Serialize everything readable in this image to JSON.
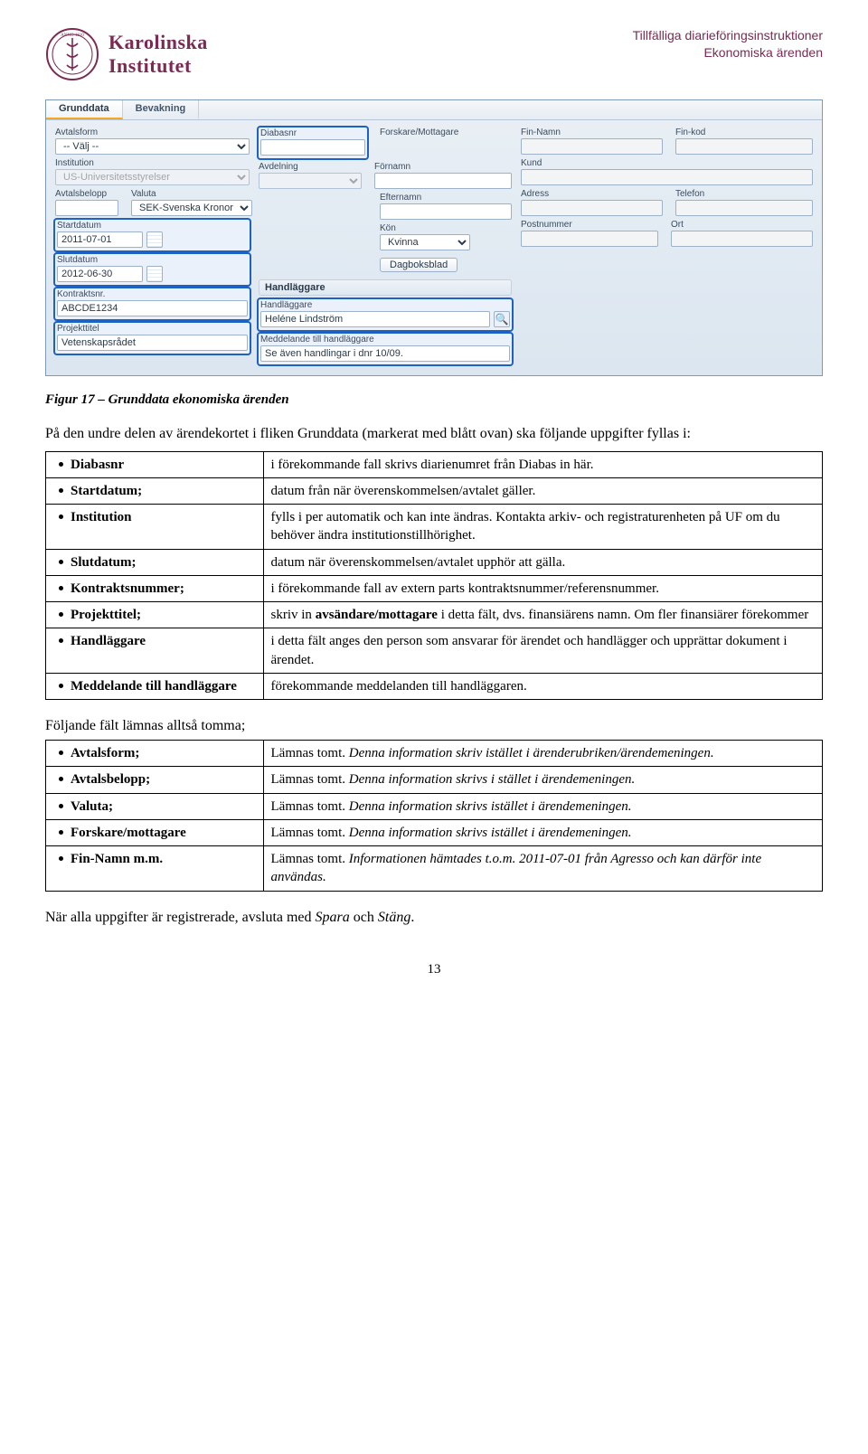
{
  "header": {
    "brand_line1": "Karolinska",
    "brand_line2": "Institutet",
    "right_line1": "Tillfälliga diarieföringsinstruktioner",
    "right_line2": "Ekonomiska ärenden",
    "brand_color": "#7b2a52"
  },
  "shot": {
    "tabs": {
      "grunddata": "Grunddata",
      "bevakning": "Bevakning"
    },
    "labels": {
      "avtalsform": "Avtalsform",
      "valj": "-- Välj --",
      "institution": "Institution",
      "institution_val": "US-Universitetsstyrelser",
      "avtalsbelopp": "Avtalsbelopp",
      "valuta": "Valuta",
      "valuta_val": "SEK-Svenska Kronor",
      "startdatum": "Startdatum",
      "startdatum_val": "2011-07-01",
      "slutdatum": "Slutdatum",
      "slutdatum_val": "2012-06-30",
      "kontraktsnr": "Kontraktsnr.",
      "kontraktsnr_val": "ABCDE1234",
      "projekttitel": "Projekttitel",
      "projekttitel_val": "Vetenskapsrådet",
      "diabasnr": "Diabasnr",
      "avdelning": "Avdelning",
      "forskare": "Forskare/Mottagare",
      "fornamn": "Förnamn",
      "efternamn": "Efternamn",
      "kon": "Kön",
      "kon_val": "Kvinna",
      "dagboksblad": "Dagboksblad",
      "handlaggare_section": "Handläggare",
      "handlaggare": "Handläggare",
      "handlaggare_val": "Heléne Lindström",
      "meddelande": "Meddelande till handläggare",
      "meddelande_val": "Se även handlingar i dnr 10/09.",
      "fin_namn": "Fin-Namn",
      "fin_kod": "Fin-kod",
      "kund": "Kund",
      "adress": "Adress",
      "telefon": "Telefon",
      "postnummer": "Postnummer",
      "ort": "Ort"
    }
  },
  "figure_caption": "Figur 17 – Grunddata ekonomiska ärenden",
  "intro": "På den undre delen av ärendekortet i fliken Grunddata (markerat med blått ovan) ska följande uppgifter fyllas i:",
  "table1": [
    {
      "k": "Diabasnr",
      "v": "i förekommande fall skrivs diarienumret från Diabas in här."
    },
    {
      "k": "Startdatum;",
      "v": "datum från när överenskommelsen/avtalet gäller."
    },
    {
      "k": "Institution",
      "v": "fylls i per automatik och kan inte ändras. Kontakta arkiv- och registraturenheten på UF om du behöver ändra institutionstillhörighet."
    },
    {
      "k": "Slutdatum;",
      "v": "datum när överenskommelsen/avtalet upphör att gälla."
    },
    {
      "k": "Kontraktsnummer;",
      "v": "i förekommande fall av extern parts kontraktsnummer/referensnummer."
    },
    {
      "k": "Projekttitel;",
      "v_pre": "skriv in ",
      "v_bold": "avsändare/mottagare",
      "v_post": " i detta fält, dvs. finansiärens namn. Om fler finansiärer förekommer"
    },
    {
      "k": "Handläggare",
      "v": "i detta fält anges den person som ansvarar för ärendet och handlägger och upprättar dokument i ärendet."
    },
    {
      "k": "Meddelande till handläggare",
      "v": "förekommande meddelanden till handläggaren."
    }
  ],
  "subhead": "Följande fält lämnas alltså tomma;",
  "table2": [
    {
      "k": "Avtalsform;",
      "v_plain": "Lämnas tomt. ",
      "v_ital": "Denna information skriv istället i ärenderubriken/ärendemeningen."
    },
    {
      "k": "Avtalsbelopp;",
      "v_plain": "Lämnas tomt. ",
      "v_ital": "Denna information skrivs i stället i ärendemeningen."
    },
    {
      "k": "Valuta;",
      "v_plain": "Lämnas tomt. ",
      "v_ital": "Denna information skrivs istället i ärendemeningen."
    },
    {
      "k": "Forskare/mottagare",
      "v_plain": "Lämnas tomt. ",
      "v_ital": "Denna information skrivs istället i ärendemeningen."
    },
    {
      "k": "Fin-Namn m.m.",
      "v_plain": "Lämnas tomt. ",
      "v_ital": "Informationen hämtades t.o.m. 2011-07-01 från Agresso och kan därför inte användas."
    }
  ],
  "closing_pre": "När alla uppgifter är registrerade, avsluta med ",
  "closing_spara": "Spara",
  "closing_mid": " och ",
  "closing_stang": "Stäng",
  "closing_post": ".",
  "page_number": "13",
  "colors": {
    "highlight_border": "#1c62c4",
    "panel_bg_top": "#e9eff5",
    "panel_bg_bottom": "#dbe6f0"
  }
}
